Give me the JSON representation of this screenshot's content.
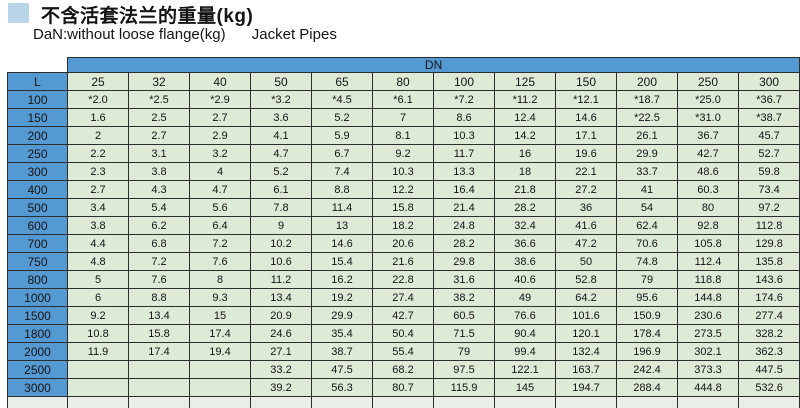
{
  "title": {
    "text": "不含活套法兰的重量(kg)"
  },
  "subtitle": {
    "left": "DaN:without loose flange(kg)",
    "right": "Jacket Pipes"
  },
  "table": {
    "dn_label": "DN",
    "l_label": "L",
    "columns": [
      "25",
      "32",
      "40",
      "50",
      "65",
      "80",
      "100",
      "125",
      "150",
      "200",
      "250",
      "300"
    ],
    "rows": [
      {
        "l": "100",
        "values": [
          "*2.0",
          "*2.5",
          "*2.9",
          "*3.2",
          "*4.5",
          "*6.1",
          "*7.2",
          "*11.2",
          "*12.1",
          "*18.7",
          "*25.0",
          "*36.7"
        ]
      },
      {
        "l": "150",
        "values": [
          "1.6",
          "2.5",
          "2.7",
          "3.6",
          "5.2",
          "7",
          "8.6",
          "12.4",
          "14.6",
          "*22.5",
          "*31.0",
          "*38.7"
        ]
      },
      {
        "l": "200",
        "values": [
          "2",
          "2.7",
          "2.9",
          "4.1",
          "5.9",
          "8.1",
          "10.3",
          "14.2",
          "17.1",
          "26.1",
          "36.7",
          "45.7"
        ]
      },
      {
        "l": "250",
        "values": [
          "2.2",
          "3.1",
          "3.2",
          "4.7",
          "6.7",
          "9.2",
          "11.7",
          "16",
          "19.6",
          "29.9",
          "42.7",
          "52.7"
        ]
      },
      {
        "l": "300",
        "values": [
          "2.3",
          "3.8",
          "4",
          "5.2",
          "7.4",
          "10.3",
          "13.3",
          "18",
          "22.1",
          "33.7",
          "48.6",
          "59.8"
        ]
      },
      {
        "l": "400",
        "values": [
          "2.7",
          "4.3",
          "4.7",
          "6.1",
          "8.8",
          "12.2",
          "16.4",
          "21.8",
          "27.2",
          "41",
          "60.3",
          "73.4"
        ]
      },
      {
        "l": "500",
        "values": [
          "3.4",
          "5.4",
          "5.6",
          "7.8",
          "11.4",
          "15.8",
          "21.4",
          "28.2",
          "36",
          "54",
          "80",
          "97.2"
        ]
      },
      {
        "l": "600",
        "values": [
          "3.8",
          "6.2",
          "6.4",
          "9",
          "13",
          "18.2",
          "24.8",
          "32.4",
          "41.6",
          "62.4",
          "92.8",
          "112.8"
        ]
      },
      {
        "l": "700",
        "values": [
          "4.4",
          "6.8",
          "7.2",
          "10.2",
          "14.6",
          "20.6",
          "28.2",
          "36.6",
          "47.2",
          "70.6",
          "105.8",
          "129.8"
        ]
      },
      {
        "l": "750",
        "values": [
          "4.8",
          "7.2",
          "7.6",
          "10.6",
          "15.4",
          "21.6",
          "29.8",
          "38.6",
          "50",
          "74.8",
          "112.4",
          "135.8"
        ]
      },
      {
        "l": "800",
        "values": [
          "5",
          "7.6",
          "8",
          "11.2",
          "16.2",
          "22.8",
          "31.6",
          "40.6",
          "52.8",
          "79",
          "118.8",
          "143.6"
        ]
      },
      {
        "l": "1000",
        "values": [
          "6",
          "8.8",
          "9.3",
          "13.4",
          "19.2",
          "27.4",
          "38.2",
          "49",
          "64.2",
          "95.6",
          "144.8",
          "174.6"
        ]
      },
      {
        "l": "1500",
        "values": [
          "9.2",
          "13.4",
          "15",
          "20.9",
          "29.9",
          "42.7",
          "60.5",
          "76.6",
          "101.6",
          "150.9",
          "230.6",
          "277.4"
        ]
      },
      {
        "l": "1800",
        "values": [
          "10.8",
          "15.8",
          "17.4",
          "24.6",
          "35.4",
          "50.4",
          "71.5",
          "90.4",
          "120.1",
          "178.4",
          "273.5",
          "328.2"
        ]
      },
      {
        "l": "2000",
        "values": [
          "11.9",
          "17.4",
          "19.4",
          "27.1",
          "38.7",
          "55.4",
          "79",
          "99.4",
          "132.4",
          "196.9",
          "302.1",
          "362.3"
        ]
      },
      {
        "l": "2500",
        "values": [
          "",
          "",
          "",
          "33.2",
          "47.5",
          "68.2",
          "97.5",
          "122.1",
          "163.7",
          "242.4",
          "373.3",
          "447.5"
        ]
      },
      {
        "l": "3000",
        "values": [
          "",
          "",
          "",
          "39.2",
          "56.3",
          "80.7",
          "115.9",
          "145",
          "194.7",
          "288.4",
          "444.8",
          "532.6"
        ]
      }
    ]
  },
  "colors": {
    "header_blue": "#5599d2",
    "cell_green": "#dcead6",
    "partial_pale": "#e9efe6",
    "title_square_blue": "#b9d5ea"
  }
}
